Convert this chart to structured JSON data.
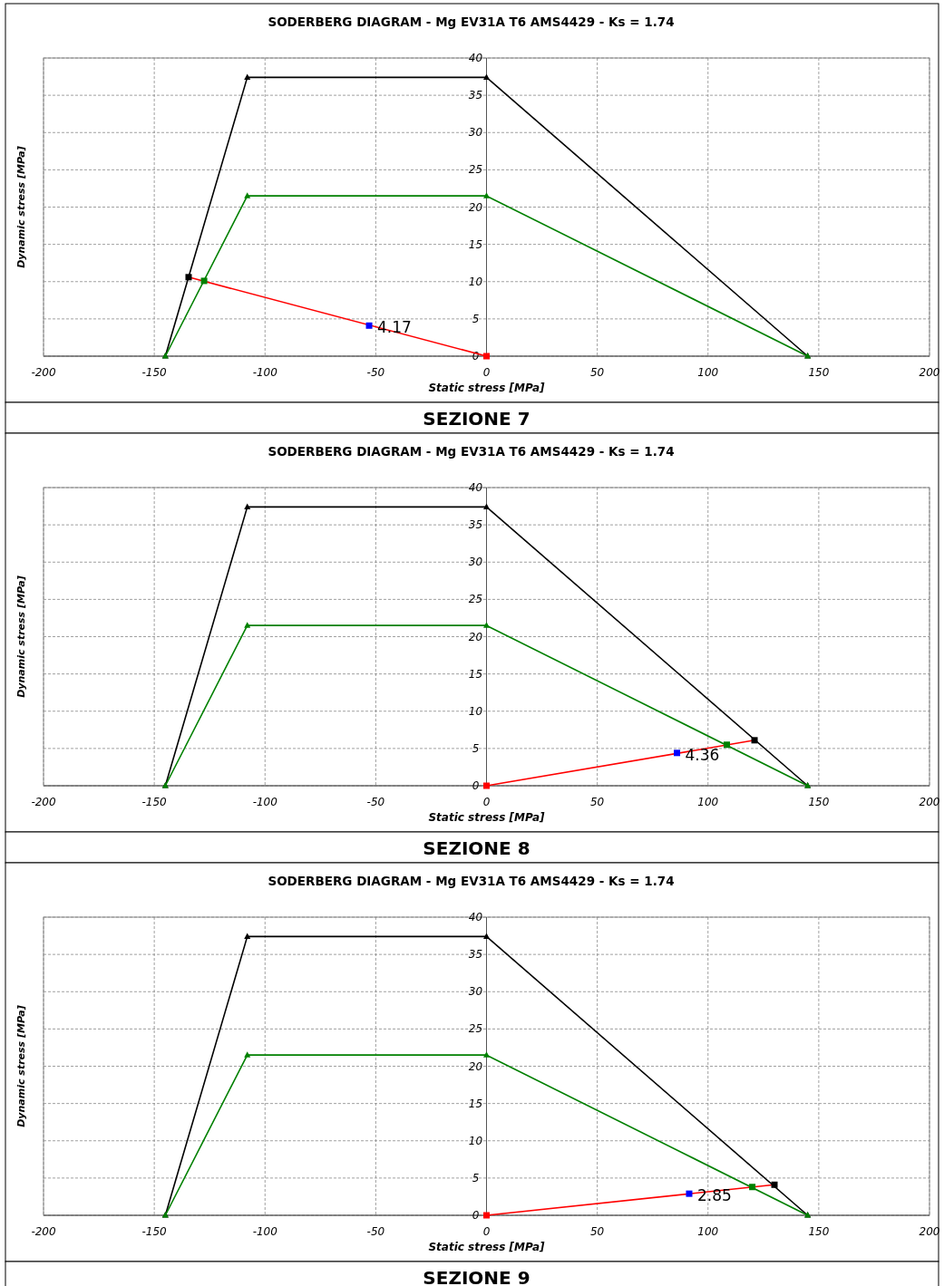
{
  "chart_data": [
    {
      "type": "line",
      "title": "SODERBERG DIAGRAM - Mg EV31A T6 AMS4429 - Ks = 1.74",
      "xlabel": "Static stress [MPa]",
      "ylabel": "Dynamic stress [MPa]",
      "annotations": [
        {
          "text": "4.17",
          "x": -53,
          "y": 4.1
        },
        "SEZIONE 7"
      ],
      "xlim": [
        -200,
        200
      ],
      "ylim": [
        0,
        40
      ],
      "xticks": [
        -200,
        -150,
        -100,
        -50,
        0,
        50,
        100,
        150,
        200
      ],
      "yticks": [
        0,
        5,
        10,
        15,
        20,
        25,
        30,
        35,
        40
      ],
      "grid": true,
      "series": [
        {
          "color": "#000000",
          "marker": "triangle",
          "x": [
            -145,
            -108,
            0,
            145
          ],
          "values": [
            0,
            37.4,
            37.4,
            0
          ]
        },
        {
          "color": "#008000",
          "marker": "triangle",
          "x": [
            -145,
            -108,
            0,
            145
          ],
          "values": [
            0,
            21.5,
            21.5,
            0
          ]
        },
        {
          "color": "#ff0000",
          "marker": "none",
          "x": [
            -134.5,
            0
          ],
          "values": [
            10.6,
            0
          ]
        },
        {
          "type": "scatter",
          "color": "#000000",
          "marker": "square",
          "x": [
            -134.5
          ],
          "values": [
            10.6
          ]
        },
        {
          "type": "scatter",
          "color": "#008000",
          "marker": "square",
          "x": [
            -127.5
          ],
          "values": [
            10.1
          ]
        },
        {
          "type": "scatter",
          "color": "#0000ff",
          "marker": "square",
          "x": [
            -53
          ],
          "values": [
            4.1
          ]
        },
        {
          "type": "scatter",
          "color": "#ff0000",
          "marker": "square",
          "x": [
            0
          ],
          "values": [
            0
          ]
        }
      ]
    },
    {
      "type": "line",
      "title": "SODERBERG DIAGRAM - Mg EV31A T6 AMS4429 - Ks = 1.74",
      "xlabel": "Static stress [MPa]",
      "ylabel": "Dynamic stress [MPa]",
      "annotations": [
        {
          "text": "4.36",
          "x": 86,
          "y": 4.4
        },
        "SEZIONE 8"
      ],
      "xlim": [
        -200,
        200
      ],
      "ylim": [
        0,
        40
      ],
      "xticks": [
        -200,
        -150,
        -100,
        -50,
        0,
        50,
        100,
        150,
        200
      ],
      "yticks": [
        0,
        5,
        10,
        15,
        20,
        25,
        30,
        35,
        40
      ],
      "grid": true,
      "series": [
        {
          "color": "#000000",
          "marker": "triangle",
          "x": [
            -145,
            -108,
            0,
            145
          ],
          "values": [
            0,
            37.4,
            37.4,
            0
          ]
        },
        {
          "color": "#008000",
          "marker": "triangle",
          "x": [
            -145,
            -108,
            0,
            145
          ],
          "values": [
            0,
            21.5,
            21.5,
            0
          ]
        },
        {
          "color": "#ff0000",
          "marker": "none",
          "x": [
            0,
            121
          ],
          "values": [
            0,
            6.1
          ]
        },
        {
          "type": "scatter",
          "color": "#000000",
          "marker": "square",
          "x": [
            121
          ],
          "values": [
            6.1
          ]
        },
        {
          "type": "scatter",
          "color": "#008000",
          "marker": "square",
          "x": [
            108.5
          ],
          "values": [
            5.5
          ]
        },
        {
          "type": "scatter",
          "color": "#0000ff",
          "marker": "square",
          "x": [
            86
          ],
          "values": [
            4.4
          ]
        },
        {
          "type": "scatter",
          "color": "#ff0000",
          "marker": "square",
          "x": [
            0
          ],
          "values": [
            0
          ]
        }
      ]
    },
    {
      "type": "line",
      "title": "SODERBERG DIAGRAM - Mg EV31A T6 AMS4429 - Ks = 1.74",
      "xlabel": "Static stress [MPa]",
      "ylabel": "Dynamic stress [MPa]",
      "annotations": [
        {
          "text": "2.85",
          "x": 91.5,
          "y": 2.9
        },
        "SEZIONE 9"
      ],
      "xlim": [
        -200,
        200
      ],
      "ylim": [
        0,
        40
      ],
      "xticks": [
        -200,
        -150,
        -100,
        -50,
        0,
        50,
        100,
        150,
        200
      ],
      "yticks": [
        0,
        5,
        10,
        15,
        20,
        25,
        30,
        35,
        40
      ],
      "grid": true,
      "series": [
        {
          "color": "#000000",
          "marker": "triangle",
          "x": [
            -145,
            -108,
            0,
            145
          ],
          "values": [
            0,
            37.4,
            37.4,
            0
          ]
        },
        {
          "color": "#008000",
          "marker": "triangle",
          "x": [
            -145,
            -108,
            0,
            145
          ],
          "values": [
            0,
            21.5,
            21.5,
            0
          ]
        },
        {
          "color": "#ff0000",
          "marker": "none",
          "x": [
            0,
            130
          ],
          "values": [
            0,
            4.1
          ]
        },
        {
          "type": "scatter",
          "color": "#000000",
          "marker": "square",
          "x": [
            130
          ],
          "values": [
            4.1
          ]
        },
        {
          "type": "scatter",
          "color": "#008000",
          "marker": "square",
          "x": [
            120
          ],
          "values": [
            3.8
          ]
        },
        {
          "type": "scatter",
          "color": "#0000ff",
          "marker": "square",
          "x": [
            91.5
          ],
          "values": [
            2.9
          ]
        },
        {
          "type": "scatter",
          "color": "#ff0000",
          "marker": "square",
          "x": [
            0
          ],
          "values": [
            0
          ]
        }
      ]
    }
  ]
}
